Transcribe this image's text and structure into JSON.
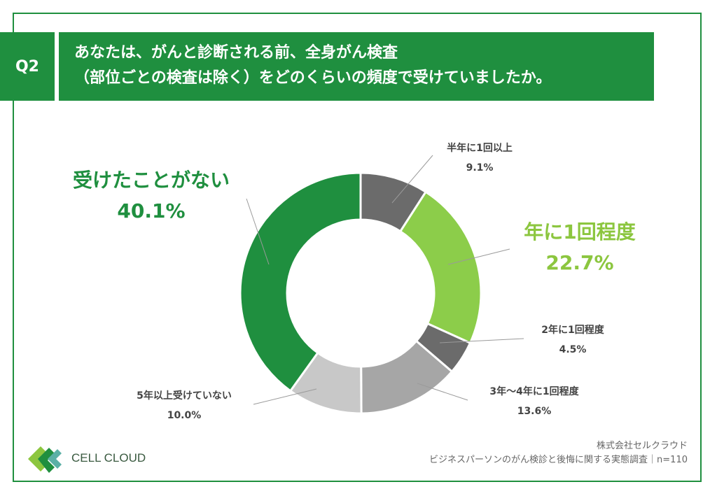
{
  "header": {
    "q_label": "Q2",
    "title_line1": "あなたは、がんと診断される前、全身がん検査",
    "title_line2": "（部位ごとの検査は除く）をどのくらいの頻度で受けていましたか。"
  },
  "chart_data": {
    "type": "pie",
    "donut": true,
    "start_angle_deg": 0,
    "direction": "clockwise",
    "slices": [
      {
        "label": "半年に1回以上",
        "value": 9.1,
        "value_label": "9.1%",
        "color": "#6b6b6b"
      },
      {
        "label": "年に1回程度",
        "value": 22.7,
        "value_label": "22.7%",
        "color": "#8ccd4a"
      },
      {
        "label": "2年に1回程度",
        "value": 4.5,
        "value_label": "4.5%",
        "color": "#6b6b6b"
      },
      {
        "label": "3年〜4年に1回程度",
        "value": 13.6,
        "value_label": "13.6%",
        "color": "#a6a6a6"
      },
      {
        "label": "5年以上受けていない",
        "value": 10.0,
        "value_label": "10.0%",
        "color": "#c8c8c8"
      },
      {
        "label": "受けたことがない",
        "value": 40.1,
        "value_label": "40.1%",
        "color": "#1f8f3f"
      }
    ]
  },
  "footer": {
    "logo_text": "CELL CLOUD",
    "company": "株式会社セルクラウド",
    "survey": "ビジネスパーソンのがん検診と後悔に関する実態調査｜n=110"
  }
}
